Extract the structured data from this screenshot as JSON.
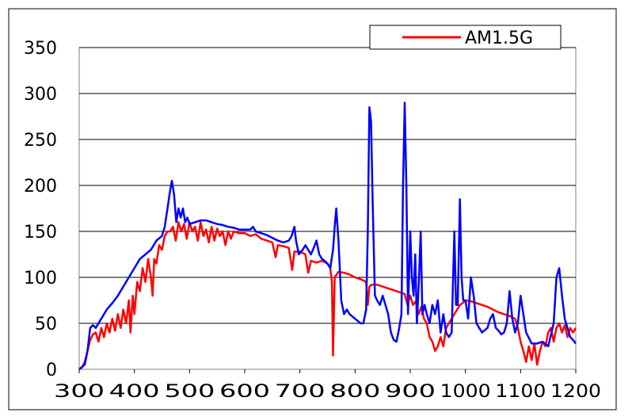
{
  "chart_data": {
    "type": "line",
    "title": "",
    "xlabel": "",
    "ylabel": "",
    "xlim": [
      300,
      1200
    ],
    "ylim": [
      0,
      350
    ],
    "x_ticks": [
      "300",
      "400",
      "500",
      "600",
      "700",
      "800",
      "900",
      "1000",
      "1100",
      "1200"
    ],
    "y_ticks": [
      "0",
      "50",
      "100",
      "150",
      "200",
      "250",
      "300",
      "350"
    ],
    "grid": "horizontal",
    "legend": {
      "position": "top-right",
      "entries": [
        "AM1.5G"
      ]
    },
    "series": [
      {
        "name": "AM1.5G",
        "color": "#ff0000",
        "points": [
          [
            300,
            0
          ],
          [
            305,
            2
          ],
          [
            310,
            8
          ],
          [
            315,
            20
          ],
          [
            320,
            32
          ],
          [
            325,
            38
          ],
          [
            330,
            40
          ],
          [
            335,
            30
          ],
          [
            340,
            45
          ],
          [
            345,
            35
          ],
          [
            350,
            50
          ],
          [
            355,
            40
          ],
          [
            360,
            55
          ],
          [
            365,
            42
          ],
          [
            370,
            60
          ],
          [
            375,
            45
          ],
          [
            380,
            65
          ],
          [
            385,
            50
          ],
          [
            390,
            75
          ],
          [
            393,
            40
          ],
          [
            397,
            80
          ],
          [
            400,
            60
          ],
          [
            405,
            95
          ],
          [
            410,
            85
          ],
          [
            415,
            110
          ],
          [
            420,
            95
          ],
          [
            425,
            120
          ],
          [
            430,
            100
          ],
          [
            433,
            80
          ],
          [
            436,
            120
          ],
          [
            440,
            115
          ],
          [
            445,
            135
          ],
          [
            450,
            130
          ],
          [
            455,
            145
          ],
          [
            460,
            150
          ],
          [
            465,
            150
          ],
          [
            470,
            155
          ],
          [
            475,
            140
          ],
          [
            480,
            160
          ],
          [
            485,
            150
          ],
          [
            490,
            158
          ],
          [
            495,
            142
          ],
          [
            500,
            160
          ],
          [
            505,
            150
          ],
          [
            510,
            155
          ],
          [
            515,
            140
          ],
          [
            520,
            160
          ],
          [
            525,
            145
          ],
          [
            530,
            152
          ],
          [
            535,
            138
          ],
          [
            540,
            155
          ],
          [
            545,
            140
          ],
          [
            550,
            153
          ],
          [
            555,
            145
          ],
          [
            560,
            150
          ],
          [
            565,
            135
          ],
          [
            570,
            150
          ],
          [
            575,
            142
          ],
          [
            580,
            150
          ],
          [
            590,
            148
          ],
          [
            600,
            148
          ],
          [
            610,
            145
          ],
          [
            620,
            147
          ],
          [
            630,
            142
          ],
          [
            640,
            140
          ],
          [
            650,
            138
          ],
          [
            656,
            122
          ],
          [
            660,
            135
          ],
          [
            670,
            134
          ],
          [
            680,
            132
          ],
          [
            686,
            108
          ],
          [
            690,
            128
          ],
          [
            700,
            128
          ],
          [
            710,
            125
          ],
          [
            715,
            105
          ],
          [
            720,
            118
          ],
          [
            730,
            116
          ],
          [
            740,
            118
          ],
          [
            750,
            115
          ],
          [
            755,
            110
          ],
          [
            758,
            95
          ],
          [
            760,
            15
          ],
          [
            763,
            100
          ],
          [
            770,
            106
          ],
          [
            780,
            105
          ],
          [
            790,
            103
          ],
          [
            800,
            100
          ],
          [
            810,
            98
          ],
          [
            820,
            95
          ],
          [
            823,
            70
          ],
          [
            826,
            90
          ],
          [
            830,
            92
          ],
          [
            840,
            92
          ],
          [
            850,
            90
          ],
          [
            860,
            88
          ],
          [
            870,
            86
          ],
          [
            880,
            84
          ],
          [
            890,
            82
          ],
          [
            895,
            70
          ],
          [
            900,
            80
          ],
          [
            905,
            70
          ],
          [
            910,
            74
          ],
          [
            915,
            60
          ],
          [
            920,
            68
          ],
          [
            925,
            55
          ],
          [
            930,
            50
          ],
          [
            935,
            35
          ],
          [
            940,
            30
          ],
          [
            945,
            20
          ],
          [
            950,
            25
          ],
          [
            955,
            35
          ],
          [
            960,
            25
          ],
          [
            965,
            45
          ],
          [
            970,
            50
          ],
          [
            975,
            55
          ],
          [
            980,
            60
          ],
          [
            985,
            65
          ],
          [
            990,
            70
          ],
          [
            995,
            72
          ],
          [
            1000,
            75
          ],
          [
            1010,
            74
          ],
          [
            1020,
            72
          ],
          [
            1030,
            70
          ],
          [
            1040,
            68
          ],
          [
            1050,
            65
          ],
          [
            1060,
            62
          ],
          [
            1070,
            60
          ],
          [
            1080,
            58
          ],
          [
            1090,
            55
          ],
          [
            1095,
            45
          ],
          [
            1100,
            30
          ],
          [
            1105,
            20
          ],
          [
            1110,
            8
          ],
          [
            1115,
            25
          ],
          [
            1120,
            10
          ],
          [
            1125,
            28
          ],
          [
            1130,
            5
          ],
          [
            1135,
            20
          ],
          [
            1140,
            30
          ],
          [
            1145,
            25
          ],
          [
            1150,
            40
          ],
          [
            1155,
            45
          ],
          [
            1160,
            30
          ],
          [
            1165,
            45
          ],
          [
            1170,
            50
          ],
          [
            1175,
            40
          ],
          [
            1180,
            48
          ],
          [
            1185,
            35
          ],
          [
            1190,
            45
          ],
          [
            1195,
            40
          ],
          [
            1200,
            45
          ]
        ]
      },
      {
        "name": "",
        "color": "#0000ff",
        "points": [
          [
            300,
            0
          ],
          [
            310,
            5
          ],
          [
            315,
            20
          ],
          [
            320,
            45
          ],
          [
            325,
            48
          ],
          [
            330,
            45
          ],
          [
            340,
            55
          ],
          [
            350,
            65
          ],
          [
            360,
            72
          ],
          [
            370,
            80
          ],
          [
            380,
            90
          ],
          [
            390,
            100
          ],
          [
            400,
            110
          ],
          [
            410,
            120
          ],
          [
            420,
            125
          ],
          [
            430,
            130
          ],
          [
            440,
            140
          ],
          [
            450,
            145
          ],
          [
            455,
            155
          ],
          [
            460,
            175
          ],
          [
            465,
            195
          ],
          [
            468,
            205
          ],
          [
            472,
            190
          ],
          [
            476,
            160
          ],
          [
            480,
            175
          ],
          [
            484,
            165
          ],
          [
            488,
            175
          ],
          [
            492,
            160
          ],
          [
            496,
            165
          ],
          [
            500,
            158
          ],
          [
            510,
            160
          ],
          [
            520,
            162
          ],
          [
            530,
            162
          ],
          [
            540,
            160
          ],
          [
            550,
            158
          ],
          [
            560,
            157
          ],
          [
            570,
            155
          ],
          [
            580,
            154
          ],
          [
            590,
            152
          ],
          [
            600,
            152
          ],
          [
            610,
            152
          ],
          [
            615,
            155
          ],
          [
            620,
            150
          ],
          [
            630,
            148
          ],
          [
            640,
            146
          ],
          [
            650,
            143
          ],
          [
            660,
            140
          ],
          [
            670,
            138
          ],
          [
            680,
            140
          ],
          [
            685,
            145
          ],
          [
            690,
            155
          ],
          [
            693,
            140
          ],
          [
            698,
            125
          ],
          [
            705,
            130
          ],
          [
            710,
            135
          ],
          [
            715,
            130
          ],
          [
            720,
            125
          ],
          [
            725,
            132
          ],
          [
            730,
            140
          ],
          [
            735,
            125
          ],
          [
            740,
            120
          ],
          [
            745,
            118
          ],
          [
            750,
            115
          ],
          [
            755,
            110
          ],
          [
            760,
            130
          ],
          [
            763,
            155
          ],
          [
            766,
            175
          ],
          [
            770,
            140
          ],
          [
            775,
            75
          ],
          [
            780,
            60
          ],
          [
            785,
            65
          ],
          [
            790,
            60
          ],
          [
            800,
            55
          ],
          [
            810,
            50
          ],
          [
            815,
            50
          ],
          [
            820,
            65
          ],
          [
            823,
            150
          ],
          [
            826,
            285
          ],
          [
            829,
            270
          ],
          [
            832,
            180
          ],
          [
            836,
            80
          ],
          [
            840,
            75
          ],
          [
            845,
            70
          ],
          [
            850,
            80
          ],
          [
            855,
            70
          ],
          [
            860,
            60
          ],
          [
            865,
            40
          ],
          [
            870,
            32
          ],
          [
            875,
            30
          ],
          [
            880,
            45
          ],
          [
            884,
            60
          ],
          [
            887,
            200
          ],
          [
            890,
            290
          ],
          [
            893,
            200
          ],
          [
            896,
            60
          ],
          [
            900,
            150
          ],
          [
            903,
            100
          ],
          [
            906,
            80
          ],
          [
            909,
            125
          ],
          [
            912,
            50
          ],
          [
            916,
            100
          ],
          [
            919,
            150
          ],
          [
            922,
            60
          ],
          [
            926,
            70
          ],
          [
            930,
            60
          ],
          [
            935,
            50
          ],
          [
            940,
            70
          ],
          [
            945,
            60
          ],
          [
            950,
            75
          ],
          [
            955,
            40
          ],
          [
            960,
            60
          ],
          [
            965,
            40
          ],
          [
            970,
            35
          ],
          [
            975,
            40
          ],
          [
            980,
            150
          ],
          [
            983,
            70
          ],
          [
            986,
            70
          ],
          [
            990,
            185
          ],
          [
            993,
            100
          ],
          [
            996,
            75
          ],
          [
            1000,
            75
          ],
          [
            1005,
            55
          ],
          [
            1010,
            100
          ],
          [
            1015,
            80
          ],
          [
            1020,
            50
          ],
          [
            1030,
            40
          ],
          [
            1040,
            45
          ],
          [
            1045,
            55
          ],
          [
            1050,
            60
          ],
          [
            1055,
            45
          ],
          [
            1060,
            42
          ],
          [
            1065,
            38
          ],
          [
            1070,
            40
          ],
          [
            1075,
            50
          ],
          [
            1080,
            85
          ],
          [
            1085,
            55
          ],
          [
            1090,
            40
          ],
          [
            1095,
            50
          ],
          [
            1100,
            80
          ],
          [
            1105,
            60
          ],
          [
            1110,
            40
          ],
          [
            1120,
            28
          ],
          [
            1130,
            28
          ],
          [
            1140,
            30
          ],
          [
            1150,
            25
          ],
          [
            1160,
            50
          ],
          [
            1165,
            100
          ],
          [
            1170,
            110
          ],
          [
            1175,
            80
          ],
          [
            1180,
            55
          ],
          [
            1185,
            45
          ],
          [
            1190,
            35
          ],
          [
            1195,
            32
          ],
          [
            1200,
            28
          ]
        ]
      }
    ]
  }
}
